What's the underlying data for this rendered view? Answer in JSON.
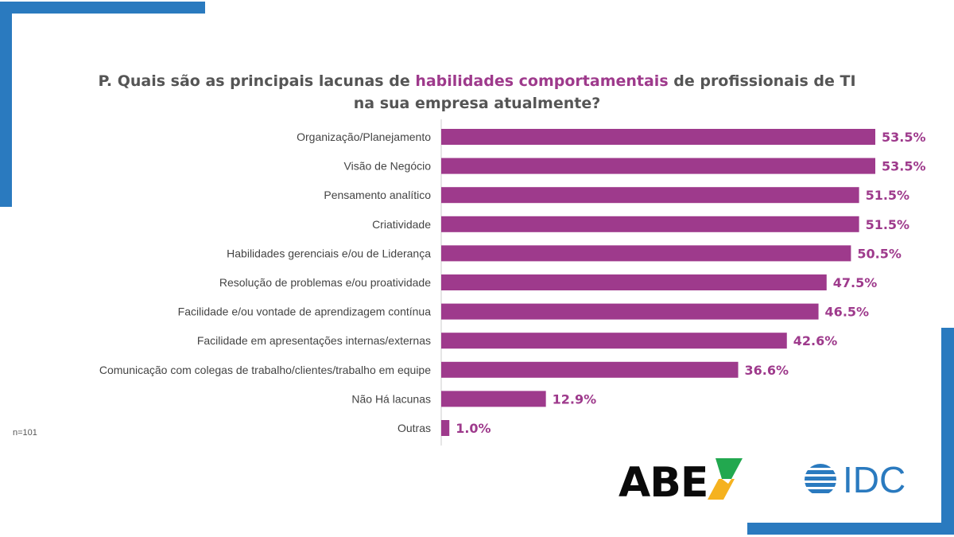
{
  "title": {
    "part1": "P. Quais são as principais lacunas de ",
    "highlight": "habilidades comportamentais",
    "part2": " de profissionais de TI",
    "line2": "na sua empresa atualmente?"
  },
  "note": "n=101",
  "logos": {
    "abes": "ABES",
    "idc": "IDC"
  },
  "colors": {
    "bar": "#9e3a8c",
    "frame": "#2a7abf"
  },
  "chart_data": {
    "type": "bar",
    "orientation": "horizontal",
    "categories": [
      "Organização/Planejamento",
      "Visão de Negócio",
      "Pensamento analítico",
      "Criatividade",
      "Habilidades gerenciais e/ou de Liderança",
      "Resolução de problemas e/ou proatividade",
      "Facilidade e/ou vontade de aprendizagem contínua",
      "Facilidade em apresentações internas/externas",
      "Comunicação com colegas de trabalho/clientes/trabalho em equipe",
      "Não Há lacunas",
      "Outras"
    ],
    "values": [
      53.5,
      53.5,
      51.5,
      51.5,
      50.5,
      47.5,
      46.5,
      42.6,
      36.6,
      12.9,
      1.0
    ],
    "labels": [
      "53.5%",
      "53.5%",
      "51.5%",
      "51.5%",
      "50.5%",
      "47.5%",
      "46.5%",
      "42.6%",
      "36.6%",
      "12.9%",
      "1.0%"
    ],
    "unit": "%",
    "xlim": [
      0,
      60
    ]
  }
}
